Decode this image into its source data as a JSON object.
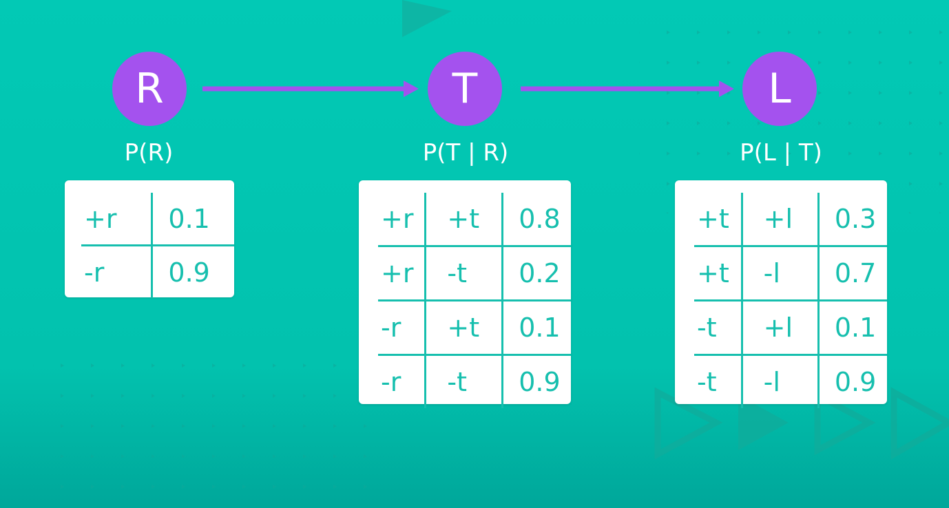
{
  "colors": {
    "background": "#02c9b5",
    "background_dark": "#00a79a",
    "node_fill": "#a452ee",
    "arrow": "#a452ee",
    "table_text": "#16bfae",
    "table_line": "#16bfae",
    "table_bg": "#ffffff"
  },
  "nodes": [
    {
      "id": "R",
      "label": "R"
    },
    {
      "id": "T",
      "label": "T"
    },
    {
      "id": "L",
      "label": "L"
    }
  ],
  "edges": [
    {
      "from": "R",
      "to": "T"
    },
    {
      "from": "T",
      "to": "L"
    }
  ],
  "tables": [
    {
      "label": "P(R)",
      "rows": [
        [
          "+r",
          "0.1"
        ],
        [
          "-r",
          "0.9"
        ]
      ]
    },
    {
      "label": "P(T | R)",
      "rows": [
        [
          "+r",
          "+t",
          "0.8"
        ],
        [
          "+r",
          "-t",
          "0.2"
        ],
        [
          "-r",
          "+t",
          "0.1"
        ],
        [
          "-r",
          "-t",
          "0.9"
        ]
      ]
    },
    {
      "label": "P(L | T)",
      "rows": [
        [
          "+t",
          "+l",
          "0.3"
        ],
        [
          "+t",
          "-l",
          "0.7"
        ],
        [
          "-t",
          "+l",
          "0.1"
        ],
        [
          "-t",
          "-l",
          "0.9"
        ]
      ]
    }
  ]
}
